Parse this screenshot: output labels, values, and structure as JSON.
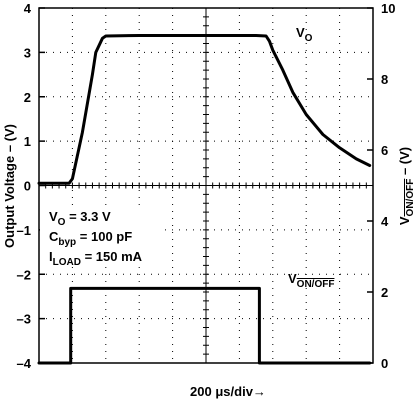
{
  "chart_data": {
    "type": "line",
    "xlabel": "200 μs/div→",
    "ylabel_left": "Output Voltage – (V)",
    "ylabel_right": {
      "main": "V",
      "sub": "ON/OFF",
      "suffix": " – (V)"
    },
    "ylim_left": [
      -4,
      4
    ],
    "ylim_right": [
      0,
      10
    ],
    "left_ticks": [
      "4",
      "3",
      "2",
      "1",
      "0",
      "–1",
      "–2",
      "–3",
      "–4"
    ],
    "right_ticks": [
      "10",
      "8",
      "6",
      "4",
      "2",
      "0"
    ],
    "x_divisions": 10,
    "grid": "dotted",
    "series": [
      {
        "name_main": "V",
        "name_sub": "O",
        "axis": "left",
        "x": [
          0,
          0.9,
          1.0,
          1.3,
          1.6,
          1.7,
          1.9,
          2.0,
          3.0,
          5.0,
          6.0,
          6.5,
          6.8,
          6.9,
          7.0,
          7.3,
          7.6,
          8.0,
          8.5,
          9.0,
          9.5,
          9.9
        ],
        "y": [
          0.05,
          0.05,
          0.15,
          1.2,
          2.5,
          3.0,
          3.32,
          3.37,
          3.38,
          3.38,
          3.38,
          3.38,
          3.37,
          3.25,
          3.05,
          2.6,
          2.1,
          1.6,
          1.15,
          0.85,
          0.6,
          0.45
        ]
      },
      {
        "name_main": "V",
        "name_sub": "ON/OFF",
        "axis": "right",
        "x": [
          0,
          0.95,
          0.95,
          6.6,
          6.6,
          9.9
        ],
        "y": [
          0,
          0,
          2.1,
          2.1,
          0,
          0
        ]
      }
    ],
    "annotations": [
      {
        "main": "V",
        "sub": "O",
        "rest": " = 3.3 V"
      },
      {
        "main": "C",
        "sub": "byp",
        "rest": " = 100 pF"
      },
      {
        "main": "I",
        "sub": "LOAD",
        "rest": " = 150 mA"
      }
    ]
  }
}
